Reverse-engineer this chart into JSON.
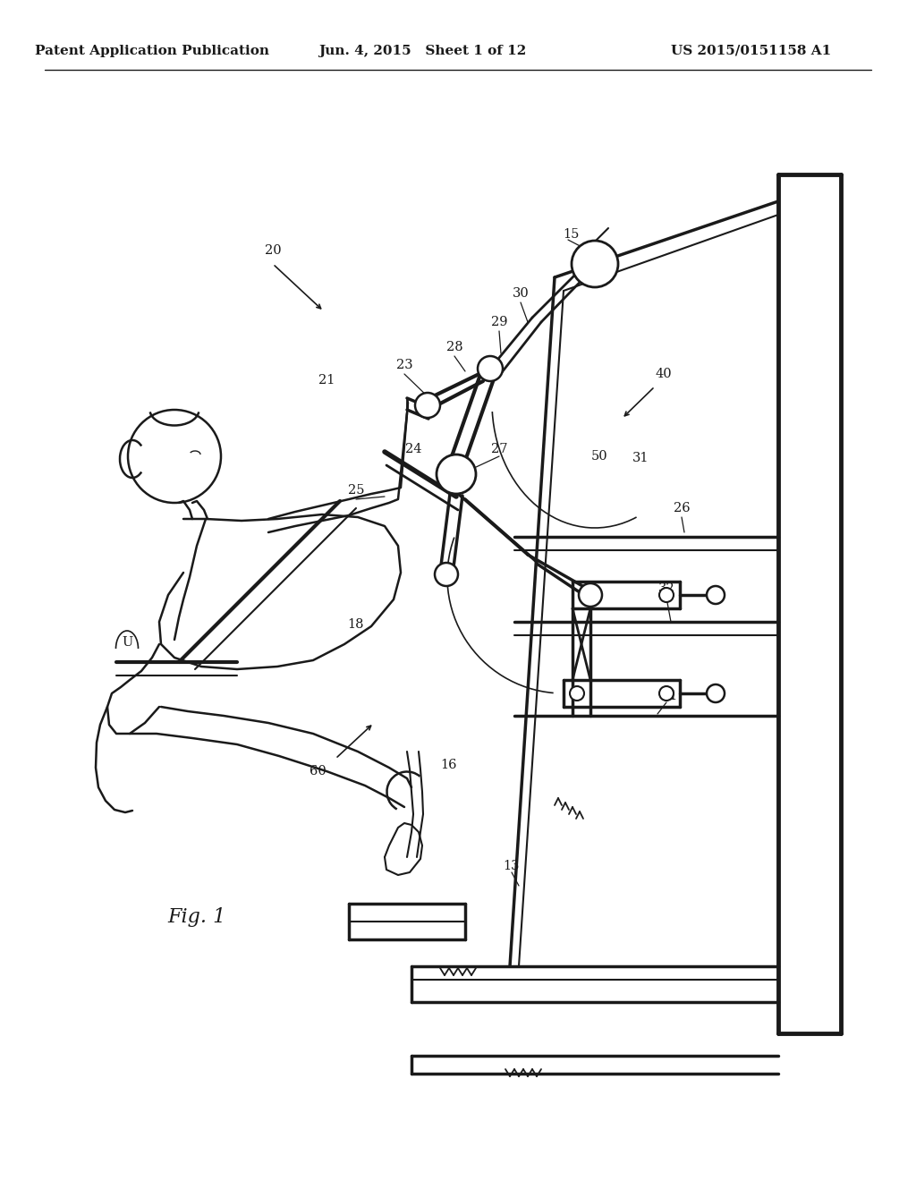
{
  "bg_color": "#ffffff",
  "line_color": "#1a1a1a",
  "header_left": "Patent Application Publication",
  "header_center": "Jun. 4, 2015   Sheet 1 of 12",
  "header_right": "US 2015/0151158 A1",
  "fig_label": "Fig. 1"
}
